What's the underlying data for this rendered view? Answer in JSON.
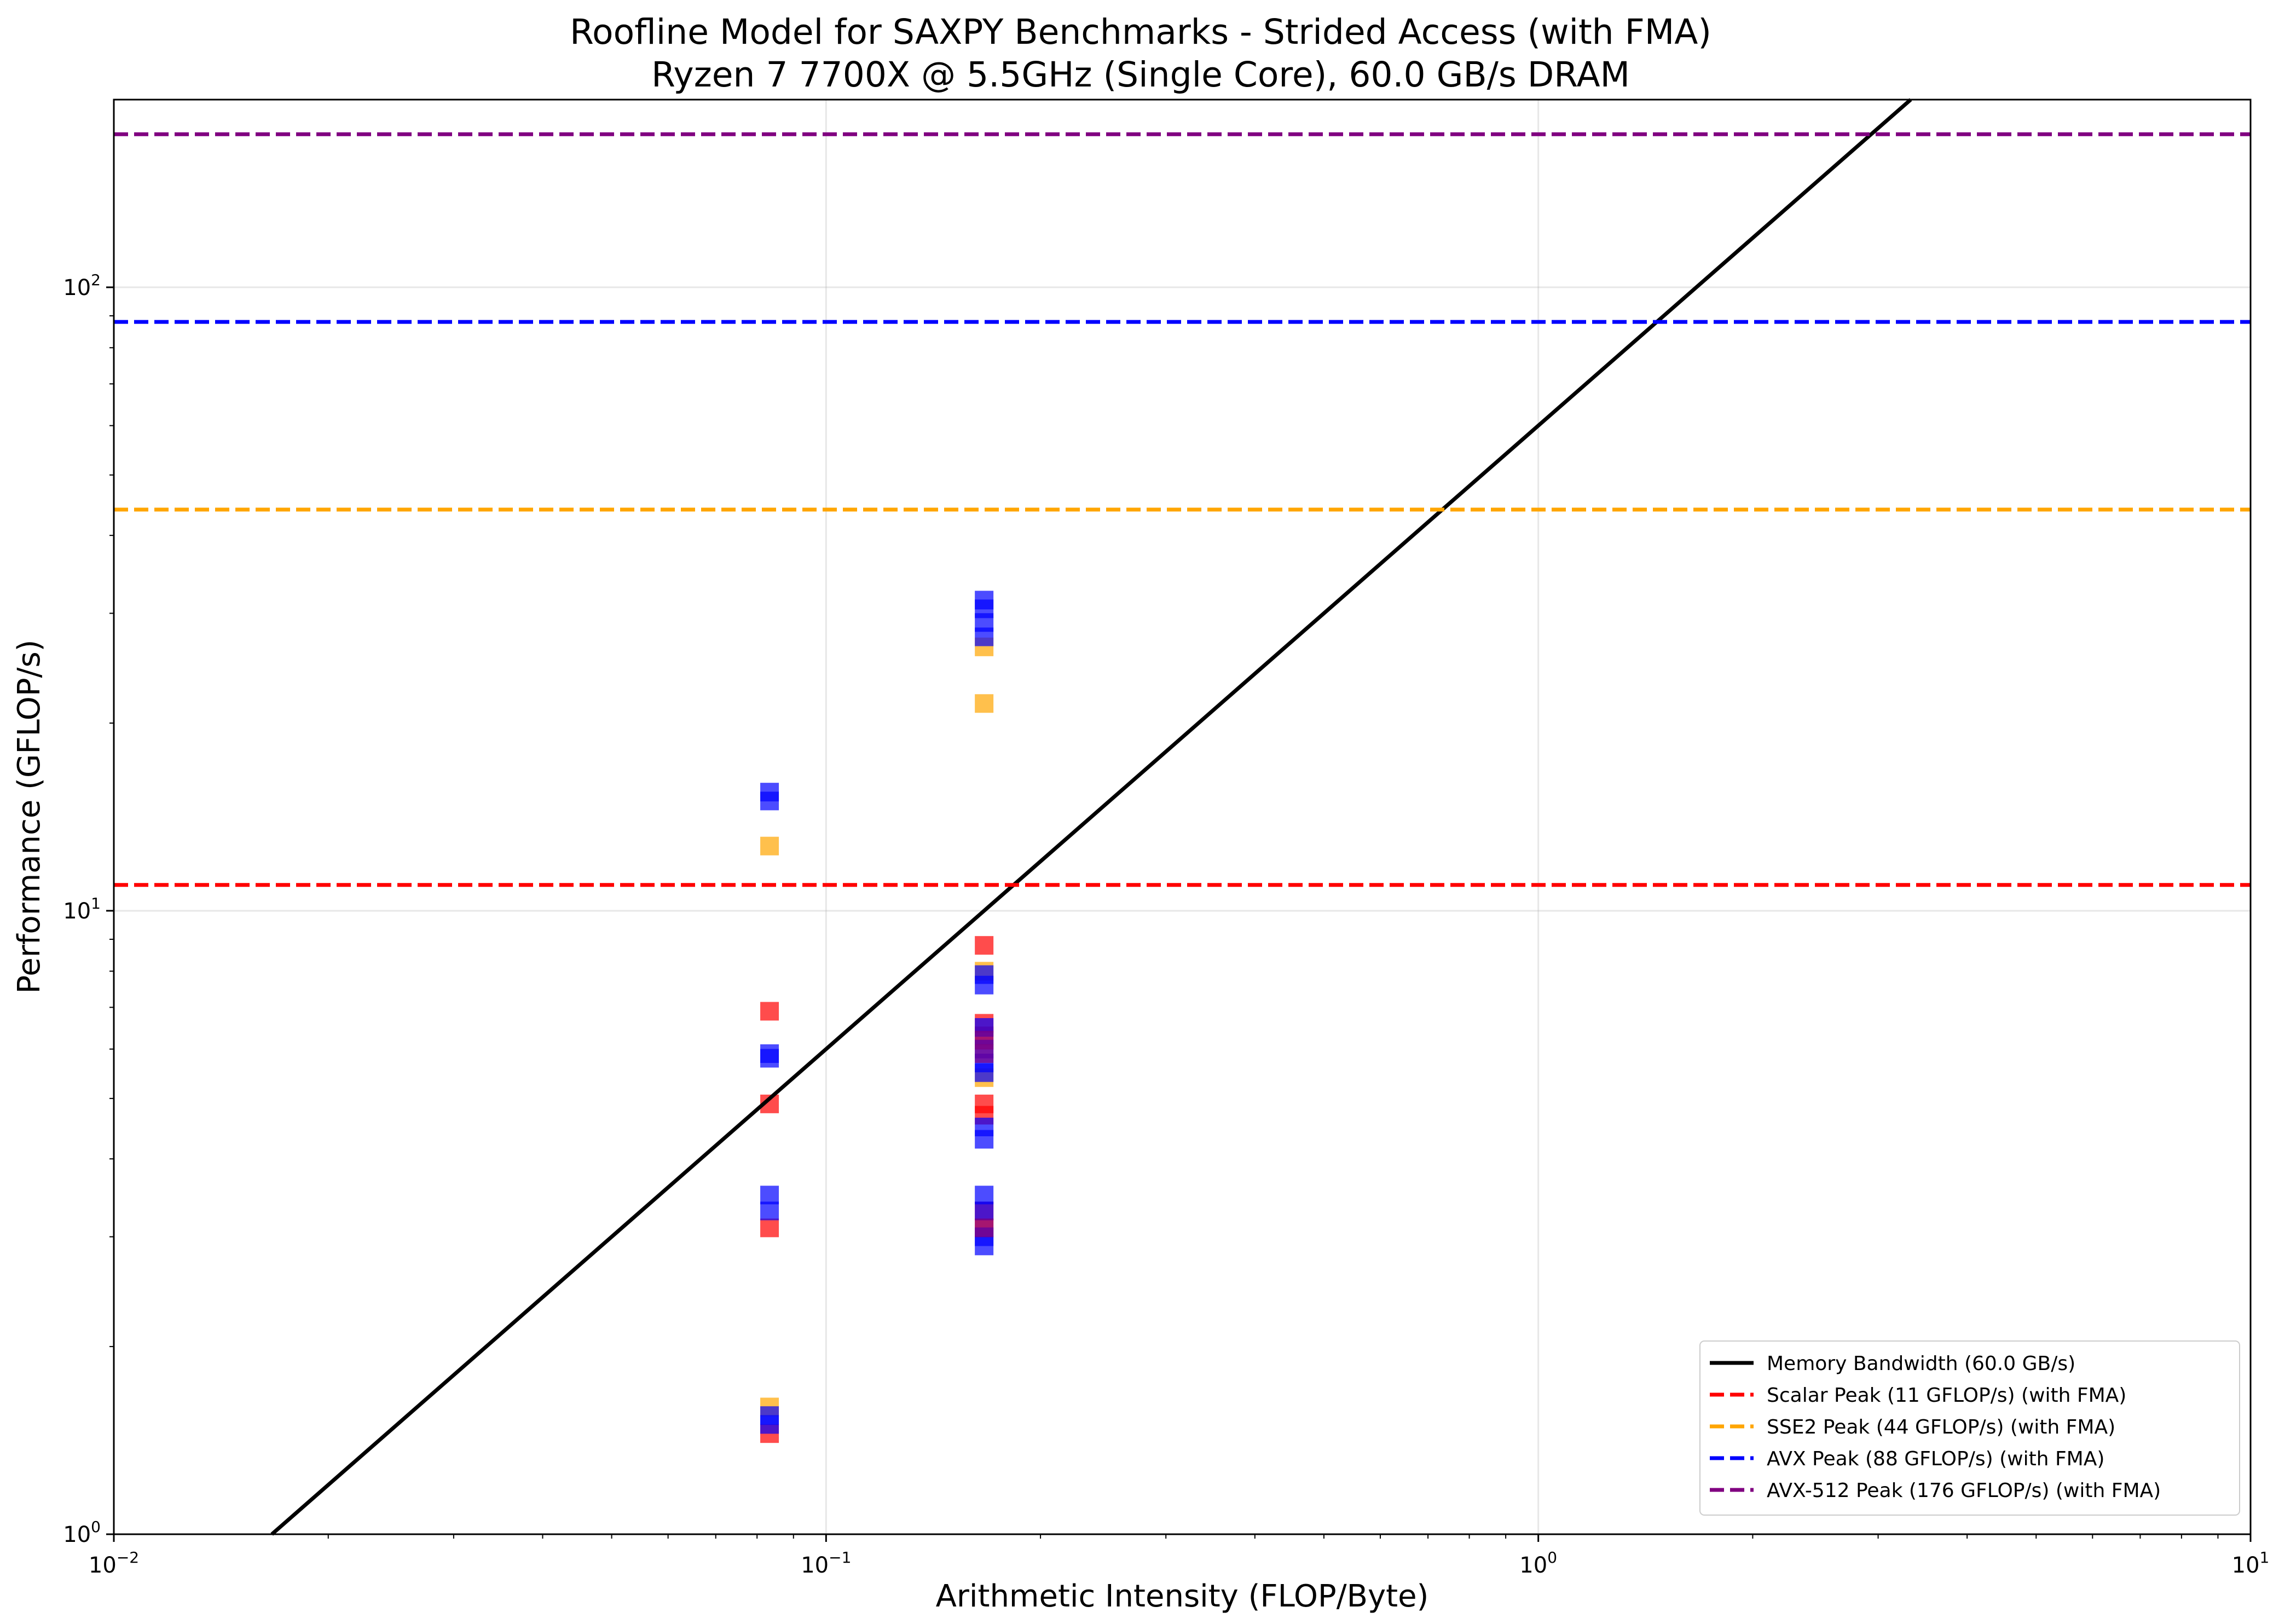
{
  "chart_data": {
    "type": "scatter",
    "title": "Roofline Model for SAXPY Benchmarks - Strided Access (with FMA)",
    "subtitle": "Ryzen 7 7700X @ 5.5GHz (Single Core), 60.0 GB/s DRAM",
    "xlabel": "Arithmetic Intensity (FLOP/Byte)",
    "ylabel": "Performance (GFLOP/s)",
    "xscale": "log",
    "yscale": "log",
    "xlim": [
      0.01,
      10
    ],
    "ylim": [
      1,
      200
    ],
    "grid": true,
    "legend_position": "lower right",
    "x_ticks": [
      {
        "value": 0.01,
        "base": "10",
        "exp": "−2"
      },
      {
        "value": 0.1,
        "base": "10",
        "exp": "−1"
      },
      {
        "value": 1,
        "base": "10",
        "exp": "0"
      },
      {
        "value": 10,
        "base": "10",
        "exp": "1"
      }
    ],
    "y_ticks": [
      {
        "value": 1,
        "base": "10",
        "exp": "0"
      },
      {
        "value": 10,
        "base": "10",
        "exp": "1"
      },
      {
        "value": 100,
        "base": "10",
        "exp": "2"
      }
    ],
    "lines": [
      {
        "label": "Memory Bandwidth (60.0 GB/s)",
        "kind": "bandwidth",
        "bandwidth": 60.0,
        "color": "#000000",
        "dash": false
      },
      {
        "label": "Scalar Peak (11 GFLOP/s) (with FMA)",
        "kind": "peak",
        "value": 11,
        "color": "#ff0000",
        "dash": true
      },
      {
        "label": "SSE2 Peak (44 GFLOP/s) (with FMA)",
        "kind": "peak",
        "value": 44,
        "color": "#ffa500",
        "dash": true
      },
      {
        "label": "AVX Peak (88 GFLOP/s) (with FMA)",
        "kind": "peak",
        "value": 88,
        "color": "#0000ff",
        "dash": true
      },
      {
        "label": "AVX-512 Peak (176 GFLOP/s) (with FMA)",
        "kind": "peak",
        "value": 176,
        "color": "#800080",
        "dash": true
      }
    ],
    "series": [
      {
        "color": "#ff0000",
        "points": [
          {
            "x": 0.0833,
            "y": 6.9
          },
          {
            "x": 0.0833,
            "y": 4.9
          },
          {
            "x": 0.0833,
            "y": 3.1
          },
          {
            "x": 0.0833,
            "y": 1.45
          },
          {
            "x": 0.1667,
            "y": 8.8
          },
          {
            "x": 0.1667,
            "y": 6.6
          },
          {
            "x": 0.1667,
            "y": 6.3
          },
          {
            "x": 0.1667,
            "y": 4.9
          },
          {
            "x": 0.1667,
            "y": 4.7
          },
          {
            "x": 0.1667,
            "y": 3.3
          },
          {
            "x": 0.1667,
            "y": 3.1
          }
        ]
      },
      {
        "color": "#ffa500",
        "points": [
          {
            "x": 0.0833,
            "y": 12.7
          },
          {
            "x": 0.0833,
            "y": 1.6
          },
          {
            "x": 0.1667,
            "y": 26.5
          },
          {
            "x": 0.1667,
            "y": 21.5
          },
          {
            "x": 0.1667,
            "y": 8.0
          },
          {
            "x": 0.1667,
            "y": 5.4
          }
        ]
      },
      {
        "color": "#0000ff",
        "points": [
          {
            "x": 0.0833,
            "y": 15.5
          },
          {
            "x": 0.0833,
            "y": 15.0
          },
          {
            "x": 0.0833,
            "y": 5.9
          },
          {
            "x": 0.0833,
            "y": 5.8
          },
          {
            "x": 0.0833,
            "y": 3.5
          },
          {
            "x": 0.0833,
            "y": 3.3
          },
          {
            "x": 0.0833,
            "y": 1.55
          },
          {
            "x": 0.0833,
            "y": 1.5
          },
          {
            "x": 0.1667,
            "y": 31.5
          },
          {
            "x": 0.1667,
            "y": 30.5
          },
          {
            "x": 0.1667,
            "y": 29.0
          },
          {
            "x": 0.1667,
            "y": 27.5
          },
          {
            "x": 0.1667,
            "y": 7.9
          },
          {
            "x": 0.1667,
            "y": 7.6
          },
          {
            "x": 0.1667,
            "y": 6.5
          },
          {
            "x": 0.1667,
            "y": 6.0
          },
          {
            "x": 0.1667,
            "y": 5.7
          },
          {
            "x": 0.1667,
            "y": 5.5
          },
          {
            "x": 0.1667,
            "y": 4.5
          },
          {
            "x": 0.1667,
            "y": 4.3
          },
          {
            "x": 0.1667,
            "y": 3.5
          },
          {
            "x": 0.1667,
            "y": 3.3
          },
          {
            "x": 0.1667,
            "y": 3.0
          },
          {
            "x": 0.1667,
            "y": 2.9
          }
        ]
      },
      {
        "color": "#800080",
        "points": [
          {
            "x": 0.1667,
            "y": 6.2
          },
          {
            "x": 0.1667,
            "y": 5.9
          },
          {
            "x": 0.1667,
            "y": 3.1
          }
        ]
      }
    ]
  }
}
